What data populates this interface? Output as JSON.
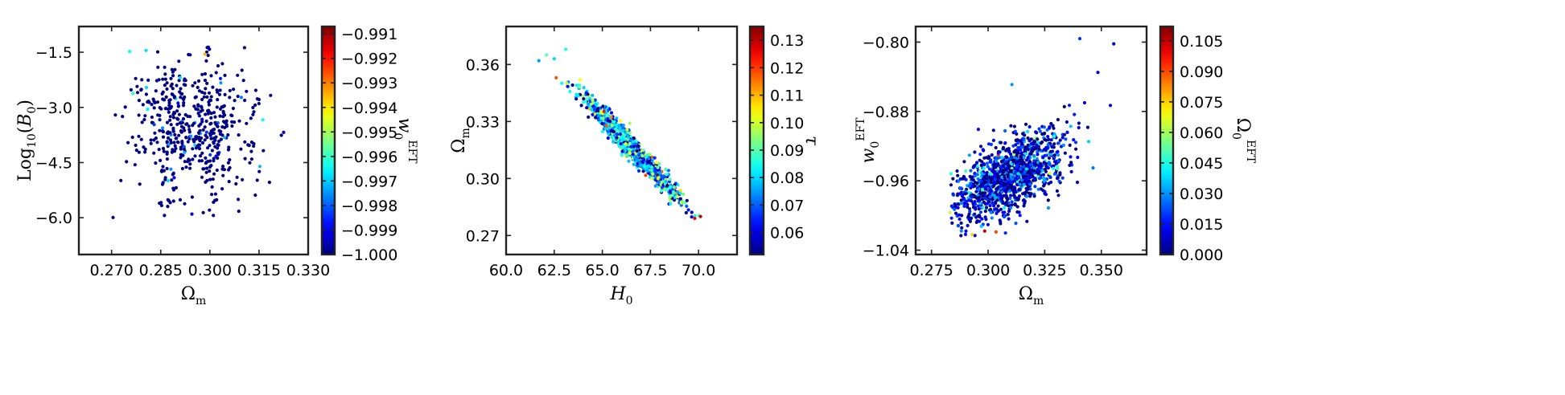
{
  "chart_data": [
    {
      "type": "scatter",
      "xlabel": "Ω_m",
      "ylabel": "Log10(B0)",
      "colorbar_label": "w0_EFT",
      "xlim": [
        0.26,
        0.33
      ],
      "ylim": [
        -7.0,
        -0.8
      ],
      "xticks": [
        "0.270",
        "0.285",
        "0.300",
        "0.315",
        "0.330"
      ],
      "xtick_values": [
        0.27,
        0.285,
        0.3,
        0.315,
        0.33
      ],
      "yticks": [
        "-1.5",
        "-3.0",
        "-4.5",
        "-6.0"
      ],
      "ytick_values": [
        -1.5,
        -3.0,
        -4.5,
        -6.0
      ],
      "color_range": [
        -1.0,
        -0.9907
      ],
      "colorbar_ticks": [
        "-0.991",
        "-0.992",
        "-0.993",
        "-0.994",
        "-0.995",
        "-0.996",
        "-0.997",
        "-0.998",
        "-0.999",
        "-1.000"
      ],
      "colorbar_tick_values": [
        -0.991,
        -0.992,
        -0.993,
        -0.994,
        -0.995,
        -0.996,
        -0.997,
        -0.998,
        -0.999,
        -1.0
      ],
      "cloud": {
        "n": 520,
        "x_mean": 0.294,
        "x_sd": 0.0095,
        "y_mean": -3.5,
        "y_sd": 1.05,
        "corr": 0.0,
        "x_clip": [
          0.268,
          0.322
        ],
        "y_clip": [
          -6.1,
          -1.35
        ],
        "color_base": -0.99995,
        "color_noise": 0.0009,
        "color_tail": 0.0025
      },
      "outliers": [
        {
          "x": 0.2755,
          "y": -1.48,
          "c": -0.9965
        },
        {
          "x": 0.2805,
          "y": -1.45,
          "c": -0.9968
        },
        {
          "x": 0.2985,
          "y": -1.55,
          "c": -0.9935
        },
        {
          "x": 0.2765,
          "y": -2.62,
          "c": -0.9962
        },
        {
          "x": 0.281,
          "y": -3.05,
          "c": -0.9966
        },
        {
          "x": 0.3045,
          "y": -3.82,
          "c": -0.9972
        },
        {
          "x": 0.3225,
          "y": -3.68,
          "c": -0.999
        },
        {
          "x": 0.2945,
          "y": -5.9,
          "c": -0.999
        }
      ]
    },
    {
      "type": "scatter",
      "xlabel": "H0",
      "ylabel": "Ω_m",
      "colorbar_label": "τ",
      "xlim": [
        60.0,
        72.0
      ],
      "ylim": [
        0.26,
        0.38
      ],
      "xticks": [
        "60.0",
        "62.5",
        "65.0",
        "67.5",
        "70.0"
      ],
      "xtick_values": [
        60.0,
        62.5,
        65.0,
        67.5,
        70.0
      ],
      "yticks": [
        "0.36",
        "0.33",
        "0.30",
        "0.27"
      ],
      "ytick_values": [
        0.36,
        0.33,
        0.3,
        0.27
      ],
      "color_range": [
        0.052,
        0.135
      ],
      "colorbar_ticks": [
        "0.13",
        "0.12",
        "0.11",
        "0.10",
        "0.09",
        "0.08",
        "0.07",
        "0.06"
      ],
      "colorbar_tick_values": [
        0.13,
        0.12,
        0.11,
        0.1,
        0.09,
        0.08,
        0.07,
        0.06
      ],
      "cloud": {
        "n": 1400,
        "x_mean": 66.6,
        "x_sd": 1.2,
        "y_mean": 0.3155,
        "y_sd": 0.0133,
        "corr": -0.975,
        "x_clip": [
          61.6,
          70.4
        ],
        "y_clip": [
          0.279,
          0.369
        ],
        "color_base": 0.076,
        "color_noise": 0.016,
        "color_tail": 0.03
      },
      "outliers": [
        {
          "x": 62.1,
          "y": 0.365,
          "c": 0.09
        },
        {
          "x": 62.5,
          "y": 0.363,
          "c": 0.08
        },
        {
          "x": 63.1,
          "y": 0.368,
          "c": 0.085
        },
        {
          "x": 62.6,
          "y": 0.353,
          "c": 0.118
        },
        {
          "x": 61.7,
          "y": 0.362,
          "c": 0.075
        },
        {
          "x": 70.1,
          "y": 0.28,
          "c": 0.13
        },
        {
          "x": 69.8,
          "y": 0.279,
          "c": 0.125
        }
      ]
    },
    {
      "type": "scatter",
      "xlabel": "Ω_m",
      "ylabel": "w0_EFT",
      "colorbar_label": "Ω0_EFT",
      "xlim": [
        0.268,
        0.37
      ],
      "ylim": [
        -1.045,
        -0.782
      ],
      "xticks": [
        "0.275",
        "0.300",
        "0.325",
        "0.350"
      ],
      "xtick_values": [
        0.275,
        0.3,
        0.325,
        0.35
      ],
      "yticks": [
        "-0.80",
        "-0.88",
        "-0.96",
        "-1.04"
      ],
      "ytick_values": [
        -0.8,
        -0.88,
        -0.96,
        -1.04
      ],
      "color_range": [
        0.0,
        0.112
      ],
      "colorbar_ticks": [
        "0.105",
        "0.090",
        "0.075",
        "0.060",
        "0.045",
        "0.030",
        "0.015",
        "0.000"
      ],
      "colorbar_tick_values": [
        0.105,
        0.09,
        0.075,
        0.06,
        0.045,
        0.03,
        0.015,
        0.0
      ],
      "cloud": {
        "n": 1250,
        "x_mean": 0.309,
        "x_sd": 0.0125,
        "y_mean": -0.955,
        "y_sd": 0.026,
        "corr": 0.62,
        "x_clip": [
          0.283,
          0.356
        ],
        "y_clip": [
          -1.025,
          -0.796
        ],
        "color_base": 0.008,
        "color_noise": 0.015,
        "color_tail": 0.045
      },
      "outliers": [
        {
          "x": 0.3405,
          "y": -0.796,
          "c": 0.02
        },
        {
          "x": 0.3555,
          "y": -0.802,
          "c": 0.01
        },
        {
          "x": 0.3485,
          "y": -0.835,
          "c": 0.01
        },
        {
          "x": 0.354,
          "y": -0.873,
          "c": 0.01
        },
        {
          "x": 0.3105,
          "y": -0.849,
          "c": 0.03
        },
        {
          "x": 0.2985,
          "y": -1.018,
          "c": 0.105
        },
        {
          "x": 0.3035,
          "y": -1.019,
          "c": 0.09
        },
        {
          "x": 0.293,
          "y": -1.022,
          "c": 0.075
        }
      ]
    }
  ]
}
